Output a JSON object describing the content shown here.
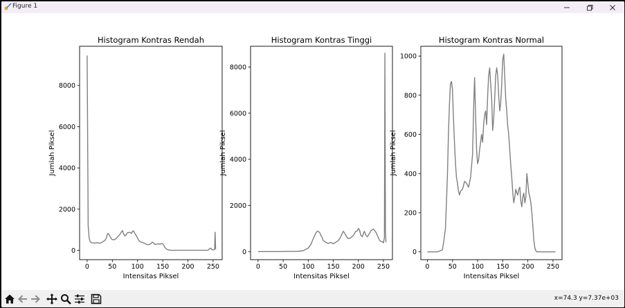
{
  "window": {
    "title": "Figure 1",
    "controls": [
      "minimize",
      "maximize",
      "close"
    ]
  },
  "toolbar": {
    "buttons": [
      "home-icon",
      "back-icon",
      "forward-icon",
      "pan-icon",
      "zoom-icon",
      "configure-subplots-icon",
      "save-icon"
    ],
    "coordinates": "x=74.3 y=7.37e+03"
  },
  "line_color": "#7f7f7f",
  "chart_data": [
    {
      "type": "line",
      "title": "Histogram Kontras Rendah",
      "xlabel": "Intensitas Piksel",
      "ylabel": "Jumlah Piksel",
      "xlim": [
        -15,
        268
      ],
      "ylim": [
        -450,
        9900
      ],
      "xticks": [
        0,
        50,
        100,
        150,
        200,
        250
      ],
      "yticks": [
        0,
        2000,
        4000,
        6000,
        8000
      ],
      "x": [
        0,
        2,
        4,
        6,
        8,
        10,
        15,
        20,
        25,
        30,
        35,
        38,
        40,
        42,
        45,
        48,
        50,
        55,
        60,
        65,
        68,
        70,
        72,
        75,
        78,
        80,
        85,
        88,
        90,
        92,
        95,
        98,
        100,
        102,
        105,
        110,
        115,
        120,
        125,
        130,
        135,
        140,
        145,
        148,
        150,
        152,
        155,
        158,
        160,
        165,
        170,
        180,
        190,
        200,
        210,
        220,
        230,
        240,
        242,
        245,
        248,
        250,
        252,
        253,
        254,
        255
      ],
      "values": [
        9450,
        1200,
        600,
        420,
        380,
        360,
        350,
        370,
        340,
        400,
        480,
        600,
        780,
        820,
        700,
        560,
        520,
        520,
        640,
        780,
        900,
        960,
        820,
        700,
        780,
        860,
        880,
        820,
        920,
        950,
        800,
        700,
        600,
        500,
        420,
        380,
        330,
        270,
        300,
        400,
        280,
        320,
        300,
        340,
        320,
        250,
        120,
        60,
        30,
        10,
        5,
        5,
        5,
        5,
        5,
        5,
        5,
        5,
        60,
        110,
        40,
        20,
        30,
        40,
        880,
        60
      ]
    },
    {
      "type": "line",
      "title": "Histogram Kontras Tinggi",
      "xlabel": "Intensitas Piksel",
      "ylabel": "Jumlah Piksel",
      "xlim": [
        -15,
        268
      ],
      "ylim": [
        -350,
        8900
      ],
      "xticks": [
        0,
        50,
        100,
        150,
        200,
        250
      ],
      "yticks": [
        0,
        2000,
        4000,
        6000,
        8000
      ],
      "x": [
        0,
        20,
        40,
        60,
        80,
        90,
        100,
        105,
        110,
        115,
        118,
        120,
        123,
        125,
        128,
        130,
        135,
        140,
        145,
        150,
        155,
        160,
        165,
        168,
        170,
        172,
        175,
        178,
        180,
        185,
        190,
        195,
        198,
        200,
        202,
        205,
        208,
        210,
        212,
        215,
        218,
        220,
        225,
        230,
        235,
        238,
        240,
        242,
        245,
        248,
        250,
        252,
        253,
        254,
        255
      ],
      "values": [
        0,
        0,
        0,
        5,
        10,
        40,
        150,
        300,
        550,
        800,
        880,
        880,
        820,
        720,
        600,
        480,
        400,
        350,
        400,
        340,
        400,
        480,
        640,
        800,
        880,
        820,
        700,
        600,
        560,
        600,
        700,
        880,
        900,
        1000,
        960,
        700,
        640,
        780,
        880,
        720,
        640,
        700,
        900,
        980,
        840,
        700,
        600,
        500,
        440,
        430,
        380,
        600,
        8600,
        940,
        400
      ]
    },
    {
      "type": "line",
      "title": "Histogram Kontras Normal",
      "xlabel": "Intensitas Piksel",
      "ylabel": "Jumlah Piksel",
      "xlim": [
        -13,
        268
      ],
      "ylim": [
        -40,
        1050
      ],
      "xticks": [
        0,
        50,
        100,
        150,
        200,
        250
      ],
      "yticks": [
        0,
        200,
        400,
        600,
        800,
        1000
      ],
      "x": [
        0,
        10,
        20,
        30,
        33,
        36,
        38,
        40,
        42,
        44,
        46,
        48,
        50,
        52,
        54,
        56,
        58,
        60,
        62,
        64,
        66,
        70,
        74,
        78,
        82,
        86,
        90,
        92,
        94,
        96,
        98,
        100,
        102,
        104,
        106,
        108,
        110,
        112,
        114,
        116,
        118,
        120,
        122,
        124,
        126,
        128,
        130,
        132,
        134,
        136,
        138,
        140,
        142,
        144,
        146,
        148,
        150,
        152,
        154,
        156,
        158,
        160,
        162,
        164,
        166,
        168,
        170,
        172,
        174,
        176,
        178,
        180,
        182,
        184,
        186,
        188,
        190,
        192,
        194,
        196,
        198,
        200,
        202,
        204,
        206,
        208,
        210,
        212,
        214,
        216,
        218,
        220,
        222,
        224,
        226,
        228,
        230,
        235,
        240,
        245,
        248,
        250,
        251,
        252,
        253,
        254,
        255
      ],
      "values": [
        0,
        0,
        0,
        10,
        60,
        120,
        250,
        400,
        600,
        760,
        860,
        870,
        830,
        680,
        560,
        450,
        380,
        350,
        310,
        290,
        310,
        320,
        360,
        350,
        330,
        380,
        500,
        720,
        890,
        700,
        520,
        450,
        470,
        520,
        560,
        600,
        560,
        650,
        700,
        720,
        650,
        800,
        900,
        940,
        860,
        780,
        620,
        680,
        780,
        900,
        940,
        900,
        800,
        720,
        760,
        860,
        980,
        1010,
        900,
        780,
        720,
        640,
        600,
        520,
        440,
        380,
        300,
        250,
        280,
        320,
        300,
        290,
        320,
        330,
        260,
        230,
        280,
        300,
        250,
        280,
        400,
        350,
        300,
        280,
        250,
        200,
        130,
        60,
        20,
        5,
        0,
        0,
        0,
        0,
        0,
        0,
        0,
        0,
        0,
        0,
        0,
        0,
        0,
        0,
        0,
        0,
        0
      ]
    }
  ]
}
